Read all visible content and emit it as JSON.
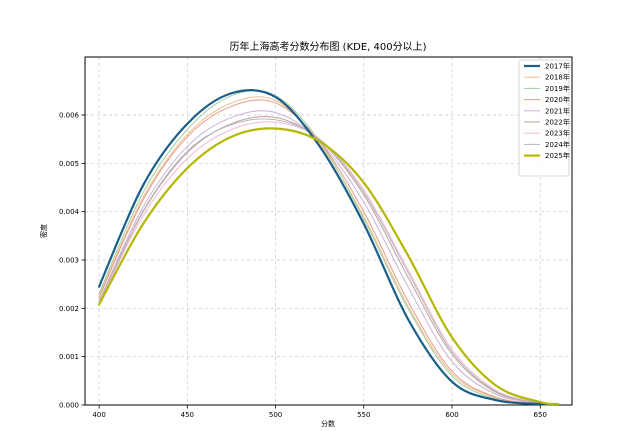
{
  "chart_data": {
    "type": "line",
    "title": "历年上海高考分数分布图 (KDE, 400分以上)",
    "xlabel": "分数",
    "ylabel": "密度",
    "xlim": [
      392,
      668
    ],
    "ylim": [
      0,
      0.0072
    ],
    "xticks": [
      400,
      450,
      500,
      550,
      600,
      650
    ],
    "xtick_labels": [
      "400",
      "450",
      "500",
      "550",
      "600",
      "650"
    ],
    "yticks": [
      0,
      0.001,
      0.002,
      0.003,
      0.004,
      0.005,
      0.006
    ],
    "ytick_labels": [
      "0.000",
      "0.001",
      "0.002",
      "0.003",
      "0.004",
      "0.005",
      "0.006"
    ],
    "grid": true,
    "legend_position": "top-right",
    "x": [
      400,
      425,
      450,
      475,
      500,
      525,
      550,
      575,
      600,
      625,
      650,
      660
    ],
    "series": [
      {
        "name": "2017年",
        "color": "#1a5f8a",
        "linewidth": 2.2,
        "values": [
          0.00245,
          0.00455,
          0.00582,
          0.00645,
          0.00637,
          0.00535,
          0.00375,
          0.00178,
          0.00048,
          0.0001,
          2e-05,
          1e-05
        ]
      },
      {
        "name": "2018年",
        "color": "#f0c089",
        "linewidth": 1.0,
        "values": [
          0.00225,
          0.0043,
          0.0056,
          0.00625,
          0.0063,
          0.0054,
          0.0039,
          0.00205,
          0.00065,
          0.00015,
          3e-05,
          1e-05
        ]
      },
      {
        "name": "2019年",
        "color": "#9fcd9f",
        "linewidth": 1.0,
        "values": [
          0.0023,
          0.0044,
          0.0057,
          0.0064,
          0.0064,
          0.00545,
          0.00385,
          0.002,
          0.0006,
          0.00013,
          3e-05,
          1e-05
        ]
      },
      {
        "name": "2020年",
        "color": "#e89a8a",
        "linewidth": 1.0,
        "values": [
          0.00222,
          0.00425,
          0.00555,
          0.00618,
          0.00625,
          0.00545,
          0.004,
          0.00215,
          0.0007,
          0.00016,
          3e-05,
          1e-05
        ]
      },
      {
        "name": "2021年",
        "color": "#c9b0d8",
        "linewidth": 1.0,
        "values": [
          0.00215,
          0.0041,
          0.00535,
          0.00595,
          0.00605,
          0.00545,
          0.0042,
          0.00245,
          0.0009,
          0.00022,
          4e-05,
          1e-05
        ]
      },
      {
        "name": "2022年",
        "color": "#bba39a",
        "linewidth": 1.0,
        "values": [
          0.00212,
          0.004,
          0.00522,
          0.00582,
          0.00595,
          0.00548,
          0.00435,
          0.00265,
          0.00105,
          0.00026,
          5e-05,
          2e-05
        ]
      },
      {
        "name": "2023年",
        "color": "#f2b8dc",
        "linewidth": 1.0,
        "values": [
          0.0021,
          0.00392,
          0.0051,
          0.0057,
          0.00585,
          0.0055,
          0.00445,
          0.0028,
          0.00115,
          0.0003,
          6e-05,
          2e-05
        ]
      },
      {
        "name": "2024年",
        "color": "#b8b8b8",
        "linewidth": 1.0,
        "values": [
          0.00215,
          0.00402,
          0.00525,
          0.0058,
          0.0059,
          0.0055,
          0.0044,
          0.00275,
          0.0011,
          0.00028,
          5e-05,
          2e-05
        ]
      },
      {
        "name": "2025年",
        "color": "#b5b800",
        "linewidth": 2.2,
        "values": [
          0.00208,
          0.00375,
          0.0049,
          0.00555,
          0.00572,
          0.00545,
          0.0046,
          0.0031,
          0.0014,
          0.0004,
          6e-05,
          2e-05
        ]
      }
    ]
  }
}
